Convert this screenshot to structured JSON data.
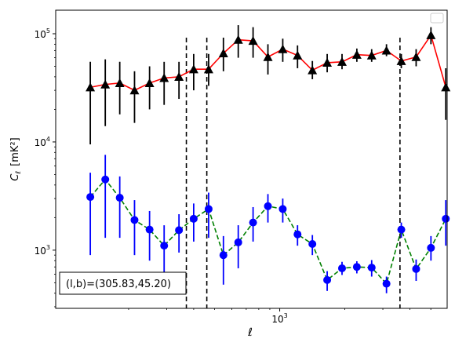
{
  "chart_data": {
    "type": "line",
    "xscale": "log",
    "yscale": "log",
    "xlim": [
      92,
      5950
    ],
    "ylim": [
      290,
      165000
    ],
    "xlabel": "ℓ",
    "ylabel_main": "C",
    "ylabel_sub": "ℓ",
    "ylabel_unit": "[mK²]",
    "x_ticks": [
      {
        "value": 1000,
        "base": "10",
        "exp": "3"
      }
    ],
    "y_ticks": [
      {
        "value": 1000,
        "base": "10",
        "exp": "3"
      },
      {
        "value": 10000,
        "base": "10",
        "exp": "4"
      },
      {
        "value": 100000,
        "base": "10",
        "exp": "5"
      }
    ],
    "annotation": "(l,b)=(305.83,45.20)",
    "legend": {
      "placement": "upper right",
      "entries": []
    },
    "vlines": [
      370,
      460,
      3600
    ],
    "series": [
      {
        "color": "#ff0000",
        "linestyle": "solid",
        "marker": "triangle",
        "marker_color": "#000000",
        "errorbar_color": "#000000",
        "points": [
          {
            "x": 133,
            "y": 32000,
            "ylo": 9500,
            "yhi": 55000
          },
          {
            "x": 156,
            "y": 34000,
            "ylo": 14000,
            "yhi": 58000
          },
          {
            "x": 182,
            "y": 35000,
            "ylo": 18000,
            "yhi": 55000
          },
          {
            "x": 213,
            "y": 30000,
            "ylo": 15000,
            "yhi": 45000
          },
          {
            "x": 250,
            "y": 35000,
            "ylo": 20000,
            "yhi": 50000
          },
          {
            "x": 292,
            "y": 39000,
            "ylo": 22000,
            "yhi": 55000
          },
          {
            "x": 342,
            "y": 40000,
            "ylo": 25000,
            "yhi": 55000
          },
          {
            "x": 400,
            "y": 47000,
            "ylo": 30000,
            "yhi": 65000
          },
          {
            "x": 469,
            "y": 47000,
            "ylo": 33000,
            "yhi": 65000
          },
          {
            "x": 549,
            "y": 66000,
            "ylo": 45000,
            "yhi": 92000
          },
          {
            "x": 643,
            "y": 88000,
            "ylo": 60000,
            "yhi": 120000
          },
          {
            "x": 753,
            "y": 86000,
            "ylo": 60000,
            "yhi": 115000
          },
          {
            "x": 882,
            "y": 61000,
            "ylo": 42000,
            "yhi": 80000
          },
          {
            "x": 1033,
            "y": 72000,
            "ylo": 55000,
            "yhi": 90000
          },
          {
            "x": 1209,
            "y": 63000,
            "ylo": 48000,
            "yhi": 78000
          },
          {
            "x": 1416,
            "y": 46000,
            "ylo": 38000,
            "yhi": 56000
          },
          {
            "x": 1658,
            "y": 54000,
            "ylo": 44000,
            "yhi": 65000
          },
          {
            "x": 1942,
            "y": 55000,
            "ylo": 47000,
            "yhi": 65000
          },
          {
            "x": 2274,
            "y": 64000,
            "ylo": 55000,
            "yhi": 73000
          },
          {
            "x": 2663,
            "y": 63000,
            "ylo": 55000,
            "yhi": 72000
          },
          {
            "x": 3118,
            "y": 70000,
            "ylo": 62000,
            "yhi": 80000
          },
          {
            "x": 3651,
            "y": 56000,
            "ylo": 48000,
            "yhi": 65000
          },
          {
            "x": 4276,
            "y": 61000,
            "ylo": 50000,
            "yhi": 72000
          },
          {
            "x": 5007,
            "y": 97000,
            "ylo": 80000,
            "yhi": 115000
          },
          {
            "x": 5864,
            "y": 32000,
            "ylo": 16000,
            "yhi": 48000
          }
        ]
      },
      {
        "color": "#008000",
        "linestyle": "dashed",
        "marker": "circle",
        "marker_color": "#0000ff",
        "errorbar_color": "#0000ff",
        "points": [
          {
            "x": 133,
            "y": 3100,
            "ylo": 900,
            "yhi": 5200
          },
          {
            "x": 156,
            "y": 4500,
            "ylo": 1300,
            "yhi": 7600
          },
          {
            "x": 182,
            "y": 3050,
            "ylo": 1300,
            "yhi": 4800
          },
          {
            "x": 213,
            "y": 1900,
            "ylo": 900,
            "yhi": 2900
          },
          {
            "x": 250,
            "y": 1550,
            "ylo": 800,
            "yhi": 2300
          },
          {
            "x": 292,
            "y": 1100,
            "ylo": 520,
            "yhi": 1700
          },
          {
            "x": 342,
            "y": 1530,
            "ylo": 950,
            "yhi": 2150
          },
          {
            "x": 400,
            "y": 1950,
            "ylo": 1200,
            "yhi": 2700
          },
          {
            "x": 469,
            "y": 2400,
            "ylo": 1300,
            "yhi": 3400
          },
          {
            "x": 549,
            "y": 900,
            "ylo": 480,
            "yhi": 1350
          },
          {
            "x": 643,
            "y": 1180,
            "ylo": 680,
            "yhi": 1700
          },
          {
            "x": 753,
            "y": 1800,
            "ylo": 1200,
            "yhi": 2500
          },
          {
            "x": 882,
            "y": 2550,
            "ylo": 1800,
            "yhi": 3300
          },
          {
            "x": 1033,
            "y": 2400,
            "ylo": 1800,
            "yhi": 3000
          },
          {
            "x": 1209,
            "y": 1400,
            "ylo": 1100,
            "yhi": 1700
          },
          {
            "x": 1416,
            "y": 1140,
            "ylo": 900,
            "yhi": 1380
          },
          {
            "x": 1658,
            "y": 530,
            "ylo": 420,
            "yhi": 640
          },
          {
            "x": 1942,
            "y": 680,
            "ylo": 590,
            "yhi": 780
          },
          {
            "x": 2274,
            "y": 700,
            "ylo": 610,
            "yhi": 790
          },
          {
            "x": 2663,
            "y": 690,
            "ylo": 570,
            "yhi": 810
          },
          {
            "x": 3118,
            "y": 490,
            "ylo": 400,
            "yhi": 570
          },
          {
            "x": 3651,
            "y": 1550,
            "ylo": 1300,
            "yhi": 1800
          },
          {
            "x": 4276,
            "y": 670,
            "ylo": 520,
            "yhi": 820
          },
          {
            "x": 5007,
            "y": 1050,
            "ylo": 800,
            "yhi": 1350
          },
          {
            "x": 5864,
            "y": 1950,
            "ylo": 1100,
            "yhi": 2900
          }
        ]
      }
    ]
  }
}
